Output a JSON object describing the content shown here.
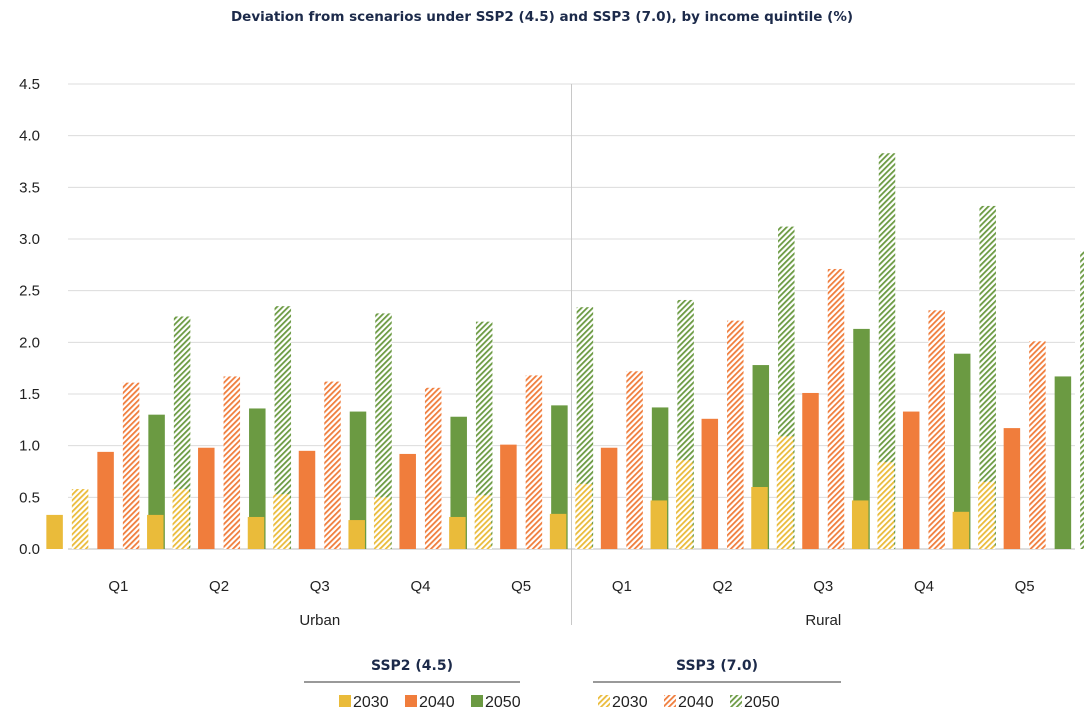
{
  "chart_data": {
    "type": "bar",
    "title": "Deviation from scenarios under SSP2 (4.5) and SSP3 (7.0), by income quintile (%)",
    "ylim": [
      0,
      4.5
    ],
    "yticks": [
      "0.0",
      "0.5",
      "1.0",
      "1.5",
      "2.0",
      "2.5",
      "3.0",
      "3.5",
      "4.0",
      "4.5"
    ],
    "groups": [
      "Urban",
      "Rural"
    ],
    "categories": [
      "Q1",
      "Q2",
      "Q3",
      "Q4",
      "Q5"
    ],
    "colors": {
      "2030": "#eabb3a",
      "2040": "#f07d3c",
      "2050": "#6b9a42"
    },
    "series": [
      {
        "name": "2030",
        "scenario": "SSP2 (4.5)",
        "values": {
          "Urban": [
            0.33,
            0.33,
            0.31,
            0.28,
            0.31
          ],
          "Rural": [
            0.34,
            0.47,
            0.6,
            0.47,
            0.36
          ]
        }
      },
      {
        "name": "2030",
        "scenario": "SSP3 (7.0)",
        "values": {
          "Urban": [
            0.58,
            0.58,
            0.53,
            0.5,
            0.52
          ],
          "Rural": [
            0.63,
            0.86,
            1.09,
            0.84,
            0.65
          ]
        }
      },
      {
        "name": "2040",
        "scenario": "SSP2 (4.5)",
        "values": {
          "Urban": [
            0.94,
            0.98,
            0.95,
            0.92,
            1.01
          ],
          "Rural": [
            0.98,
            1.26,
            1.51,
            1.33,
            1.17
          ]
        }
      },
      {
        "name": "2040",
        "scenario": "SSP3 (7.0)",
        "values": {
          "Urban": [
            1.61,
            1.67,
            1.62,
            1.56,
            1.68
          ],
          "Rural": [
            1.72,
            2.21,
            2.71,
            2.31,
            2.01
          ]
        }
      },
      {
        "name": "2050",
        "scenario": "SSP2 (4.5)",
        "values": {
          "Urban": [
            1.3,
            1.36,
            1.33,
            1.28,
            1.39
          ],
          "Rural": [
            1.37,
            1.78,
            2.13,
            1.89,
            1.67
          ]
        }
      },
      {
        "name": "2050",
        "scenario": "SSP3 (7.0)",
        "values": {
          "Urban": [
            2.25,
            2.35,
            2.28,
            2.2,
            2.34
          ],
          "Rural": [
            2.41,
            3.12,
            3.83,
            3.32,
            2.88
          ]
        }
      }
    ],
    "legend": {
      "position": "bottom",
      "groups": [
        {
          "title": "SSP2 (4.5)",
          "style": "solid",
          "entries": [
            "2030",
            "2040",
            "2050"
          ]
        },
        {
          "title": "SSP3 (7.0)",
          "style": "hatched",
          "entries": [
            "2030",
            "2040",
            "2050"
          ]
        }
      ]
    },
    "grid": true
  }
}
